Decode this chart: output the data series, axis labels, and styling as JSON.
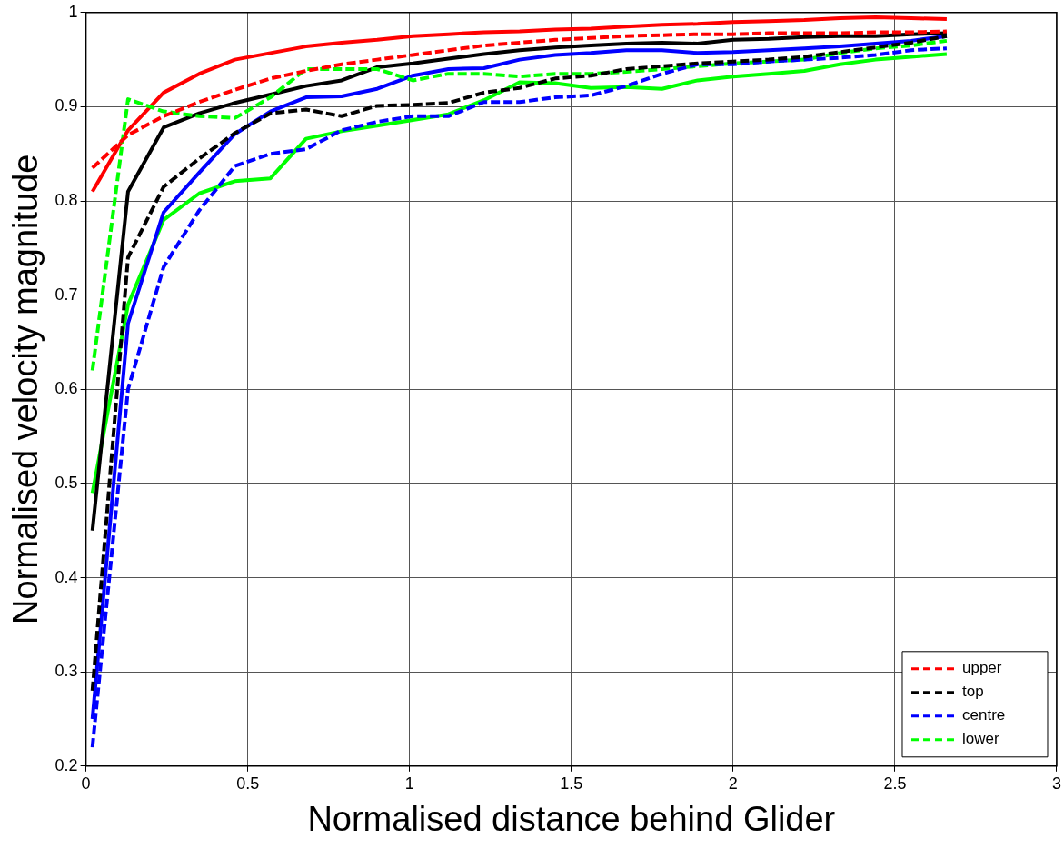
{
  "chart_data": {
    "type": "line",
    "xlabel": "Normalised distance behind Glider",
    "ylabel": "Normalised velocity magnitude",
    "xlim": [
      0,
      3
    ],
    "xticks": [
      0,
      0.5,
      1,
      1.5,
      2,
      2.5,
      3
    ],
    "ylim": [
      0.2,
      1
    ],
    "yticks": [
      0.2,
      0.3,
      0.4,
      0.5,
      0.6,
      0.7,
      0.8,
      0.9,
      1
    ],
    "grid": true,
    "legend": "bottom right",
    "marker": "none",
    "x": [
      0.02,
      0.13,
      0.24,
      0.35,
      0.46,
      0.57,
      0.68,
      0.79,
      0.9,
      1.01,
      1.12,
      1.23,
      1.34,
      1.45,
      1.56,
      1.67,
      1.78,
      1.89,
      2.0,
      2.11,
      2.22,
      2.33,
      2.44,
      2.55,
      2.66
    ],
    "series": [
      {
        "name": "upper",
        "color": "#ff0000",
        "line_style": "dashed",
        "values": [
          0.835,
          0.87,
          0.89,
          0.905,
          0.918,
          0.93,
          0.938,
          0.945,
          0.95,
          0.955,
          0.96,
          0.965,
          0.968,
          0.971,
          0.973,
          0.975,
          0.976,
          0.977,
          0.977,
          0.978,
          0.978,
          0.978,
          0.979,
          0.979,
          0.98
        ]
      },
      {
        "name": "top",
        "color": "#000000",
        "line_style": "dashed",
        "values": [
          0.28,
          0.74,
          0.815,
          0.845,
          0.872,
          0.893,
          0.897,
          0.89,
          0.901,
          0.902,
          0.904,
          0.915,
          0.92,
          0.93,
          0.933,
          0.94,
          0.943,
          0.946,
          0.948,
          0.95,
          0.953,
          0.958,
          0.963,
          0.968,
          0.975
        ]
      },
      {
        "name": "centre",
        "color": "#0000ff",
        "line_style": "dashed",
        "values": [
          0.22,
          0.6,
          0.73,
          0.79,
          0.837,
          0.85,
          0.855,
          0.875,
          0.884,
          0.89,
          0.89,
          0.905,
          0.905,
          0.91,
          0.912,
          0.922,
          0.935,
          0.945,
          0.945,
          0.948,
          0.95,
          0.952,
          0.955,
          0.96,
          0.962
        ]
      },
      {
        "name": "lower",
        "color": "#00ff00",
        "line_style": "dashed",
        "values": [
          0.62,
          0.908,
          0.895,
          0.89,
          0.888,
          0.91,
          0.94,
          0.94,
          0.94,
          0.928,
          0.935,
          0.935,
          0.932,
          0.935,
          0.935,
          0.937,
          0.94,
          0.943,
          0.946,
          0.948,
          0.95,
          0.957,
          0.962,
          0.965,
          0.97
        ]
      },
      {
        "color": "#ff0000",
        "line_style": "solid",
        "values": [
          0.81,
          0.875,
          0.915,
          0.935,
          0.95,
          0.957,
          0.964,
          0.968,
          0.971,
          0.975,
          0.977,
          0.979,
          0.98,
          0.982,
          0.983,
          0.985,
          0.987,
          0.988,
          0.99,
          0.991,
          0.992,
          0.994,
          0.995,
          0.994,
          0.993
        ]
      },
      {
        "color": "#000000",
        "line_style": "solid",
        "values": [
          0.45,
          0.81,
          0.878,
          0.893,
          0.904,
          0.913,
          0.922,
          0.928,
          0.942,
          0.946,
          0.951,
          0.956,
          0.96,
          0.963,
          0.965,
          0.967,
          0.968,
          0.967,
          0.971,
          0.972,
          0.974,
          0.975,
          0.975,
          0.977,
          0.978
        ]
      },
      {
        "color": "#0000ff",
        "line_style": "solid",
        "values": [
          0.25,
          0.67,
          0.788,
          0.83,
          0.871,
          0.895,
          0.91,
          0.911,
          0.919,
          0.933,
          0.94,
          0.941,
          0.95,
          0.955,
          0.957,
          0.96,
          0.96,
          0.957,
          0.958,
          0.96,
          0.962,
          0.964,
          0.967,
          0.97,
          0.975
        ]
      },
      {
        "color": "#00ff00",
        "line_style": "solid",
        "values": [
          0.49,
          0.69,
          0.78,
          0.808,
          0.821,
          0.824,
          0.866,
          0.874,
          0.88,
          0.886,
          0.892,
          0.907,
          0.926,
          0.925,
          0.92,
          0.921,
          0.919,
          0.928,
          0.932,
          0.935,
          0.938,
          0.945,
          0.95,
          0.953,
          0.956
        ]
      }
    ]
  }
}
